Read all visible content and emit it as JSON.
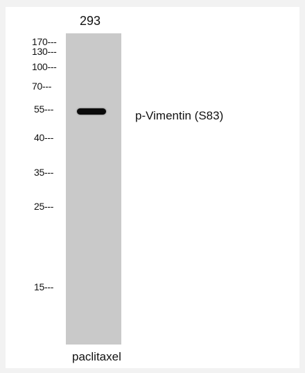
{
  "sample": "293",
  "treatment": "paclitaxel",
  "target": "p-Vimentin (S83)",
  "markers": {
    "m170": "170---",
    "m130": "130---",
    "m100": "100---",
    "m70": "70---",
    "m55": "55---",
    "m40": "40---",
    "m35": "35---",
    "m25": "25---",
    "m15": "15---"
  },
  "colors": {
    "page_background": "#f2f2f2",
    "panel_background": "#ffffff",
    "lane": "#c9c9c9",
    "band": "#0b0b0b"
  }
}
